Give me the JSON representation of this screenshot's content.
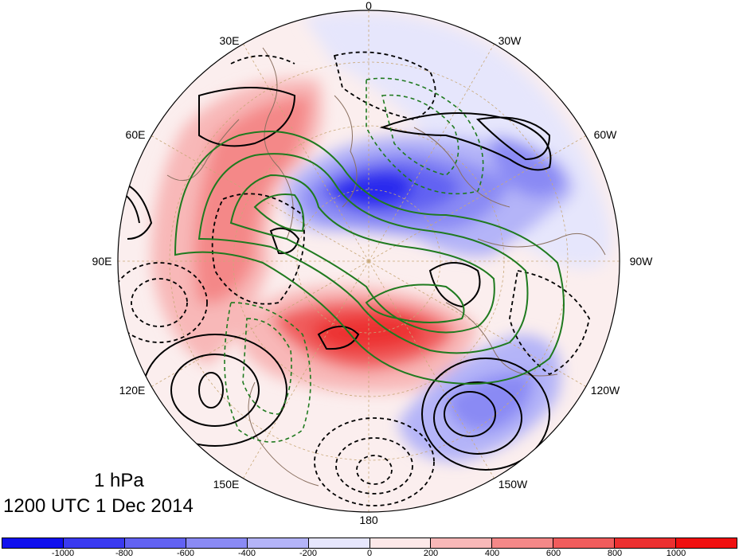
{
  "title": {
    "level": "1 hPa",
    "time": "1200 UTC 1 Dec 2014"
  },
  "map": {
    "projection": "north-polar-stereographic",
    "longitude_labels": [
      {
        "text": "0",
        "lon": 0
      },
      {
        "text": "30W",
        "lon": -30
      },
      {
        "text": "60W",
        "lon": -60
      },
      {
        "text": "90W",
        "lon": -90
      },
      {
        "text": "120W",
        "lon": -120
      },
      {
        "text": "150W",
        "lon": -150
      },
      {
        "text": "180",
        "lon": 180
      },
      {
        "text": "150E",
        "lon": 150
      },
      {
        "text": "120E",
        "lon": 120
      },
      {
        "text": "90E",
        "lon": 90
      },
      {
        "text": "60E",
        "lon": 60
      },
      {
        "text": "30E",
        "lon": 30
      }
    ],
    "colors": {
      "positive_contour": "#000000",
      "negative_contour": "#000000",
      "green_contour": "#1f7a1f",
      "graticule": "#c8a878",
      "coastline": "#8a7060"
    }
  },
  "colorbar": {
    "colors": [
      "#1010ee",
      "#3a3af0",
      "#6262f2",
      "#8a8af4",
      "#b4b4f8",
      "#e6e6fc",
      "#fde8e8",
      "#f8b8b8",
      "#f48888",
      "#f05c5c",
      "#ec3030",
      "#f01010"
    ],
    "tick_labels": [
      "-1000",
      "-800",
      "-600",
      "-400",
      "-200",
      "0",
      "200",
      "400",
      "600",
      "800",
      "1000"
    ]
  }
}
